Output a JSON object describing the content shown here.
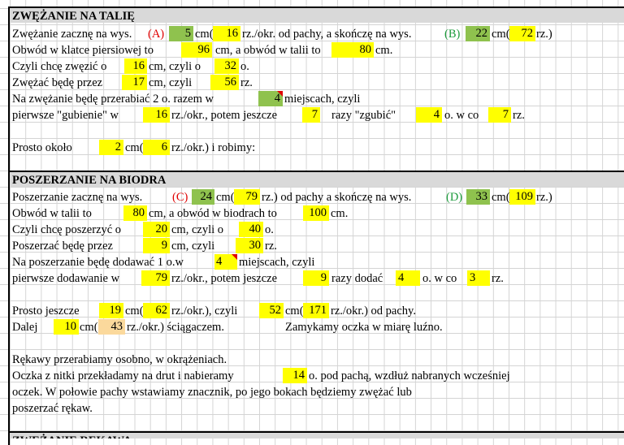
{
  "section1": {
    "title": "ZWĘŻANIE NA TALIĘ",
    "row1": {
      "t1": "Zwężanie zacznę na wys.",
      "A": "(A)",
      "v1": "5",
      "t2": "cm(",
      "v2": "16",
      "t3": "rz./okr. od pachy, a skończę na wys.",
      "B": "(B)",
      "v3": "22",
      "t4": "cm(",
      "v4": "72",
      "t5": "rz.)"
    },
    "row2": {
      "t1": "Obwód w klatce piersiowej to",
      "v1": "96",
      "t2": "cm, a obwód w talii to",
      "v2": "80",
      "t3": "cm."
    },
    "row3": {
      "t1": "Czyli chcę zwęzić o",
      "v1": "16",
      "t2": "cm, czyli o",
      "v2": "32",
      "t3": "o."
    },
    "row4": {
      "t1": "Zwężać będę przez",
      "v1": "17",
      "t2": "cm, czyli",
      "v2": "56",
      "t3": "rz."
    },
    "row5": {
      "t1": "Na zwężanie będę przerabiać 2 o. razem w",
      "v1": "4",
      "t2": "miejscach, czyli"
    },
    "row6": {
      "t1": "pierwsze \"gubienie\" w",
      "v1": "16",
      "t2": "rz./okr., potem jeszcze",
      "v2": "7",
      "t3": "razy \"zgubić\"",
      "v3": "4",
      "t4": "o. w co",
      "v4": "7",
      "t5": "rz."
    },
    "row8": {
      "t1": "Prosto około",
      "v1": "2",
      "t2": "cm(",
      "v2": "6",
      "t3": "rz./okr.) i robimy:"
    }
  },
  "section2": {
    "title": "POSZERZANIE NA BIODRA",
    "row1": {
      "t1": "Poszerzanie zacznę na wys.",
      "C": "(C)",
      "v1": "24",
      "t2": "cm(",
      "v2": "79",
      "t3": "rz.) od pachy a skończę na wys.",
      "D": "(D)",
      "v3": "33",
      "t4": "cm(",
      "v4": "109",
      "t5": "rz.)"
    },
    "row2": {
      "t1": "Obwód w talii to",
      "v1": "80",
      "t2": "cm, a obwód w biodrach to",
      "v2": "100",
      "t3": "cm."
    },
    "row3": {
      "t1": "Czyli chcę poszerzyć o",
      "v1": "20",
      "t2": "cm, czyli o",
      "v2": "40",
      "t3": "o."
    },
    "row4": {
      "t1": "Poszerzać będę przez",
      "v1": "9",
      "t2": "cm, czyli",
      "v2": "30",
      "t3": "rz."
    },
    "row5": {
      "t1": "Na poszerzanie będę dodawać 1 o.w",
      "v1": "4",
      "t2": "miejscach, czyli"
    },
    "row6": {
      "t1": "pierwsze dodawanie w",
      "v1": "79",
      "t2": "rz./okr., potem jeszcze",
      "v2": "9",
      "t3": "razy dodać",
      "v3": "4",
      "t4": "o. w co",
      "v4": "3",
      "t5": "rz."
    },
    "row8": {
      "t1": "Prosto jeszcze",
      "v1": "19",
      "t2": "cm(",
      "v2": "62",
      "t3": "rz./okr.), czyli",
      "v3": "52",
      "t4": "cm(",
      "v4": "171",
      "t5": "rz./okr.) od pachy."
    },
    "row9": {
      "t1": "Dalej",
      "v1": "10",
      "t2": "cm(",
      "v2": "43",
      "t3": "rz./okr.) ściągaczem.",
      "t4": "Zamykamy oczka w miarę luźno."
    },
    "row11": {
      "t1": "Rękawy przerabiamy osobno, w okrążeniach."
    },
    "row12": {
      "t1": "Oczka z nitki przekładamy na drut i nabieramy",
      "v1": "14",
      "t2": "o. pod pachą, wzdłuż nabranych wcześniej"
    },
    "row13": {
      "t1": "oczek. W połowie pachy wstawiamy znacznik, po jego bokach będziemy zwężać lub"
    },
    "row14": {
      "t1": "poszerzać rękaw."
    }
  },
  "section3": {
    "title": "ZWĘŻANIE RĘKAWA"
  }
}
